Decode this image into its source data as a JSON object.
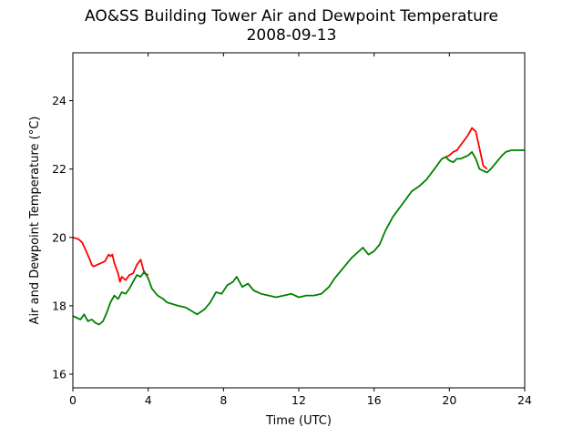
{
  "chart_data": {
    "type": "line",
    "title": "AO&SS Building Tower Air and Dewpoint Temperature",
    "subtitle": "2008-09-13",
    "xlabel": "Time (UTC)",
    "ylabel": "Air and Dewpoint Temperature (°C)",
    "xlim": [
      0,
      24
    ],
    "ylim": [
      15.6,
      25.4
    ],
    "xticks": [
      0,
      4,
      8,
      12,
      16,
      20,
      24
    ],
    "yticks": [
      16,
      18,
      20,
      22,
      24
    ],
    "grid": false,
    "legend": "none",
    "series": [
      {
        "color": "#ff0000",
        "x": [
          0,
          0.3,
          0.5,
          0.7,
          0.9,
          1.0,
          1.1,
          1.3,
          1.5,
          1.7,
          1.9,
          2.0,
          2.1,
          2.2,
          2.4,
          2.5,
          2.6,
          2.8,
          3.0,
          3.2,
          3.4,
          3.6,
          3.8,
          4.0
        ],
        "y": [
          20.0,
          19.95,
          19.85,
          19.6,
          19.35,
          19.2,
          19.15,
          19.2,
          19.25,
          19.3,
          19.5,
          19.45,
          19.5,
          19.25,
          18.95,
          18.7,
          18.85,
          18.75,
          18.9,
          18.95,
          19.2,
          19.35,
          18.95,
          18.9
        ]
      },
      {
        "color": "#ff0000",
        "x": [
          19.8,
          20.0,
          20.2,
          20.4,
          20.6,
          20.8,
          21.0,
          21.2,
          21.4,
          21.6,
          21.8,
          22.0
        ],
        "y": [
          22.35,
          22.4,
          22.5,
          22.55,
          22.7,
          22.85,
          23.0,
          23.2,
          23.1,
          22.6,
          22.1,
          22.0
        ]
      },
      {
        "color": "#008000",
        "x": [
          0,
          0.2,
          0.4,
          0.6,
          0.8,
          1.0,
          1.2,
          1.4,
          1.6,
          1.8,
          2.0,
          2.2,
          2.4,
          2.6,
          2.8,
          3.0,
          3.2,
          3.4,
          3.6,
          3.8,
          4.0,
          4.2,
          4.5,
          4.8,
          5.0,
          5.3,
          5.6,
          6.0,
          6.3,
          6.6,
          7.0,
          7.3,
          7.6,
          7.9,
          8.2,
          8.5,
          8.7,
          9.0,
          9.3,
          9.6,
          10.0,
          10.4,
          10.8,
          11.2,
          11.6,
          12.0,
          12.4,
          12.8,
          13.2,
          13.6,
          13.9,
          14.2,
          14.5,
          14.8,
          15.1,
          15.4,
          15.7,
          16.0,
          16.3,
          16.6,
          17.0,
          17.4,
          17.8,
          18.0,
          18.4,
          18.8,
          19.2,
          19.6,
          19.8,
          20.0,
          20.2,
          20.4,
          20.6,
          20.8,
          21.0,
          21.2,
          21.4,
          21.6,
          21.8,
          22.0,
          22.2,
          22.5,
          22.8,
          23.0,
          23.3,
          23.6,
          24.0
        ],
        "y": [
          17.7,
          17.65,
          17.6,
          17.75,
          17.55,
          17.6,
          17.5,
          17.45,
          17.55,
          17.8,
          18.1,
          18.3,
          18.2,
          18.4,
          18.35,
          18.5,
          18.7,
          18.9,
          18.85,
          19.0,
          18.8,
          18.5,
          18.3,
          18.2,
          18.1,
          18.05,
          18.0,
          17.95,
          17.85,
          17.75,
          17.9,
          18.1,
          18.4,
          18.35,
          18.6,
          18.7,
          18.85,
          18.55,
          18.65,
          18.45,
          18.35,
          18.3,
          18.25,
          18.3,
          18.35,
          18.25,
          18.3,
          18.3,
          18.35,
          18.55,
          18.8,
          19.0,
          19.2,
          19.4,
          19.55,
          19.7,
          19.5,
          19.6,
          19.8,
          20.2,
          20.6,
          20.9,
          21.2,
          21.35,
          21.5,
          21.7,
          22.0,
          22.3,
          22.35,
          22.25,
          22.2,
          22.3,
          22.3,
          22.35,
          22.4,
          22.5,
          22.3,
          22.0,
          21.95,
          21.9,
          22.0,
          22.2,
          22.4,
          22.5,
          22.55,
          22.55,
          22.55
        ]
      }
    ]
  }
}
